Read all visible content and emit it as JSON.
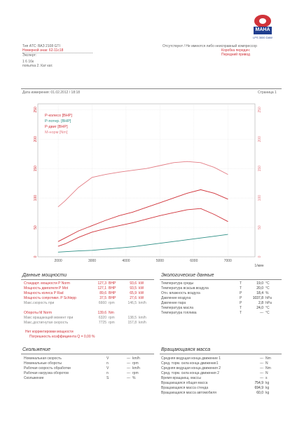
{
  "header": {
    "left": {
      "lines": [
        "Тип ATC:      ВАЗ 2108 GTI",
        "Номерной знак: 62-11с18",
        "Эксперт:",
        "1 6 16к",
        "попытка 2. Кат кат."
      ]
    },
    "right": {
      "lines": [
        "Отсутствуют / Не имеются либо неисправный компрессор",
        "Коробка передач:",
        "Передний привод"
      ]
    },
    "logo": {
      "text": "MAHA",
      "sub": "LPS 3000 DAW"
    }
  },
  "meta": {
    "date_label": "Дата измерения: 01.02.2012 / 18:18",
    "page_label": "Страница 1"
  },
  "chart_data": {
    "type": "line",
    "xlabel": "1/мин",
    "x_ticks": [
      "2000",
      "3000",
      "4000",
      "5000",
      "6000",
      "7000"
    ],
    "y_left_ticks": [
      "0",
      "50",
      "100",
      "150",
      "200",
      "250"
    ],
    "y_right_ticks": [
      "0",
      "50",
      "100",
      "150",
      "200",
      "250"
    ],
    "xlim": [
      1400,
      7800
    ],
    "ylim_left": [
      0,
      260
    ],
    "ylim_right": [
      0,
      260
    ],
    "legend": [
      "P-колесо [BHP]",
      "P-потер. [BHP]",
      "P-двиг [BHP]",
      "M-норм [Nm]"
    ],
    "series": [
      {
        "name": "P-колесо [BHP]",
        "color": "#d0333a",
        "axis": "left",
        "x": [
          2000,
          2200,
          2600,
          3000,
          3400,
          3800,
          4200,
          4600,
          5000,
          5400,
          5800,
          6200,
          6600,
          7000
        ],
        "y": [
          18,
          22,
          33,
          42,
          48,
          53,
          58,
          64,
          70,
          75,
          80,
          82,
          72,
          60
        ]
      },
      {
        "name": "P-потер. [BHP]",
        "color": "#2e8f85",
        "axis": "left",
        "x": [
          2000,
          2600,
          3000,
          3400,
          3800,
          4200,
          4600,
          5000,
          5400,
          5800,
          6200,
          6600,
          7000
        ],
        "y": [
          8,
          10,
          11,
          13,
          15,
          17,
          20,
          23,
          26,
          29,
          32,
          35,
          38
        ]
      },
      {
        "name": "P-двиг [BHP]",
        "color": "#d0333a",
        "axis": "left",
        "x": [
          2000,
          2200,
          2600,
          3000,
          3400,
          3800,
          4200,
          4600,
          5000,
          5400,
          5800,
          6200,
          6600,
          7000
        ],
        "y": [
          26,
          32,
          44,
          53,
          62,
          70,
          76,
          84,
          92,
          100,
          108,
          114,
          108,
          98
        ]
      },
      {
        "name": "M-норм [Nm]",
        "color": "#e37d85",
        "axis": "right",
        "x": [
          2000,
          2200,
          2600,
          3000,
          3400,
          3800,
          4200,
          4600,
          5000,
          5400,
          5800,
          6200,
          6600,
          7000
        ],
        "y": [
          85,
          95,
          118,
          135,
          140,
          144,
          147,
          150,
          155,
          160,
          162,
          160,
          152,
          140
        ]
      }
    ]
  },
  "power": {
    "title": "Данные мощности",
    "rows": [
      {
        "label": "Стандарт. мощности  P Norm",
        "v1": "127,3",
        "u1": "BHP",
        "v2": "93,6",
        "u2": "kW",
        "red": true
      },
      {
        "label": "Мощность двигателя  P Mot",
        "v1": "127,1",
        "u1": "BHP",
        "v2": "93,5",
        "u2": "kW",
        "red": true
      },
      {
        "label": "Мощность колеса  P Rad",
        "v1": "89,6",
        "u1": "BHP",
        "v2": "65,9",
        "u2": "kW",
        "red": true
      },
      {
        "label": "Мощность сопротивл. P Schlepp",
        "v1": "37,5",
        "u1": "BHP",
        "v2": "27,6",
        "u2": "kW",
        "red": true
      },
      {
        "label": "Макс.скорость при",
        "v1": "6660",
        "u1": "rpm",
        "v2": "146,5",
        "u2": "km/h",
        "red": false
      }
    ],
    "rows2": [
      {
        "label": "Обороты  M Norm",
        "v1": "139,6",
        "u1": "Nm",
        "v2": "",
        "u2": "",
        "red": true
      },
      {
        "label": "Макс вращающий момент при",
        "v1": "6320",
        "u1": "rpm",
        "v2": "138,5",
        "u2": "km/h",
        "red": false
      },
      {
        "label": "Макс.достигнутая скорость",
        "v1": "7725",
        "u1": "rpm",
        "v2": "157,8",
        "u2": "km/h",
        "red": false
      }
    ],
    "notes": [
      "Нет корректировки мощности",
      "Погрешность коэффициента  Q = 0,00 %"
    ]
  },
  "env": {
    "title": "Экологические данные",
    "rows": [
      {
        "label": "Температура среды",
        "sym": "T",
        "v": "19,0",
        "u": "°C"
      },
      {
        "label": "Температура всасыв.воздуха",
        "sym": "T",
        "v": "20,0",
        "u": "°C"
      },
      {
        "label": "Отн. влажность воздуха",
        "sym": "P",
        "v": "18,4",
        "u": "%"
      },
      {
        "label": "Давление воздуха",
        "sym": "P",
        "v": "1037,8",
        "u": "hPa"
      },
      {
        "label": "Давление пара",
        "sym": "P",
        "v": "2,8",
        "u": "hPa"
      },
      {
        "label": "Температура масла",
        "sym": "T",
        "v": "24,0",
        "u": "°C"
      },
      {
        "label": "Температура топлива",
        "sym": "T",
        "v": "---",
        "u": "°C"
      }
    ]
  },
  "slip": {
    "title": "Скольжение",
    "rows": [
      {
        "label": "Номинальная скорость",
        "sym": "V",
        "v": "---",
        "u": "km/h"
      },
      {
        "label": "Номинальные обороты",
        "sym": "n",
        "v": "---",
        "u": "rpm"
      },
      {
        "label": "Рабочая скорость обработки",
        "sym": "V",
        "v": "---",
        "u": "km/h"
      },
      {
        "label": "Рабочая нагрузка оборотов",
        "sym": "n",
        "v": "---",
        "u": "rpm"
      },
      {
        "label": "Скольжение",
        "sym": "S",
        "v": "---",
        "u": "%"
      }
    ]
  },
  "mass": {
    "title": "Вращающаяся масса",
    "rows": [
      {
        "label": "Средняя ведущая конца движение 1",
        "v": "---",
        "u": "Nm"
      },
      {
        "label": "Сред. торм. сила конца движение1",
        "v": "---",
        "u": "N"
      },
      {
        "label": "Средняя ведущая конца движения 2",
        "v": "---",
        "u": "Nm"
      },
      {
        "label": "Сред. торм. сила конца движения 2",
        "v": "---",
        "u": "N"
      },
      {
        "label": "Время вращающ. массы",
        "v": "---",
        "u": "s"
      },
      {
        "label": "Вращающаяся общая масса",
        "v": "754,9",
        "u": "kg"
      },
      {
        "label": "Вращающаяся масса стенда",
        "v": "694,9",
        "u": "kg"
      },
      {
        "label": "Вращающаяся масса автомобиля",
        "v": "60,0",
        "u": "kg"
      }
    ]
  }
}
